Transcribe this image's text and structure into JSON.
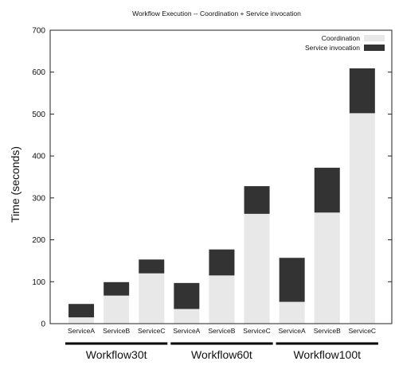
{
  "chart_data": {
    "type": "bar",
    "stacked": true,
    "title": "Workflow Execution -- Coordination + Service invocation",
    "xlabel": "",
    "ylabel": "Time (seconds)",
    "ylim": [
      0,
      700
    ],
    "yticks": [
      0,
      100,
      200,
      300,
      400,
      500,
      600,
      700
    ],
    "categories": [
      "ServiceA",
      "ServiceB",
      "ServiceC",
      "ServiceA",
      "ServiceB",
      "ServiceC",
      "ServiceA",
      "ServiceB",
      "ServiceC"
    ],
    "groups": [
      {
        "label": "Workflow30t",
        "categories": [
          0,
          1,
          2
        ]
      },
      {
        "label": "Workflow60t",
        "categories": [
          3,
          4,
          5
        ]
      },
      {
        "label": "Workflow100t",
        "categories": [
          6,
          7,
          8
        ]
      }
    ],
    "series": [
      {
        "name": "Coordination",
        "color": "#e8e8e8",
        "values": [
          15,
          67,
          120,
          35,
          115,
          262,
          52,
          265,
          502
        ]
      },
      {
        "name": "Service invocation",
        "color": "#333333",
        "values": [
          32,
          32,
          33,
          62,
          62,
          66,
          105,
          107,
          107
        ]
      }
    ],
    "grid": false,
    "legend_position": "top-right"
  }
}
